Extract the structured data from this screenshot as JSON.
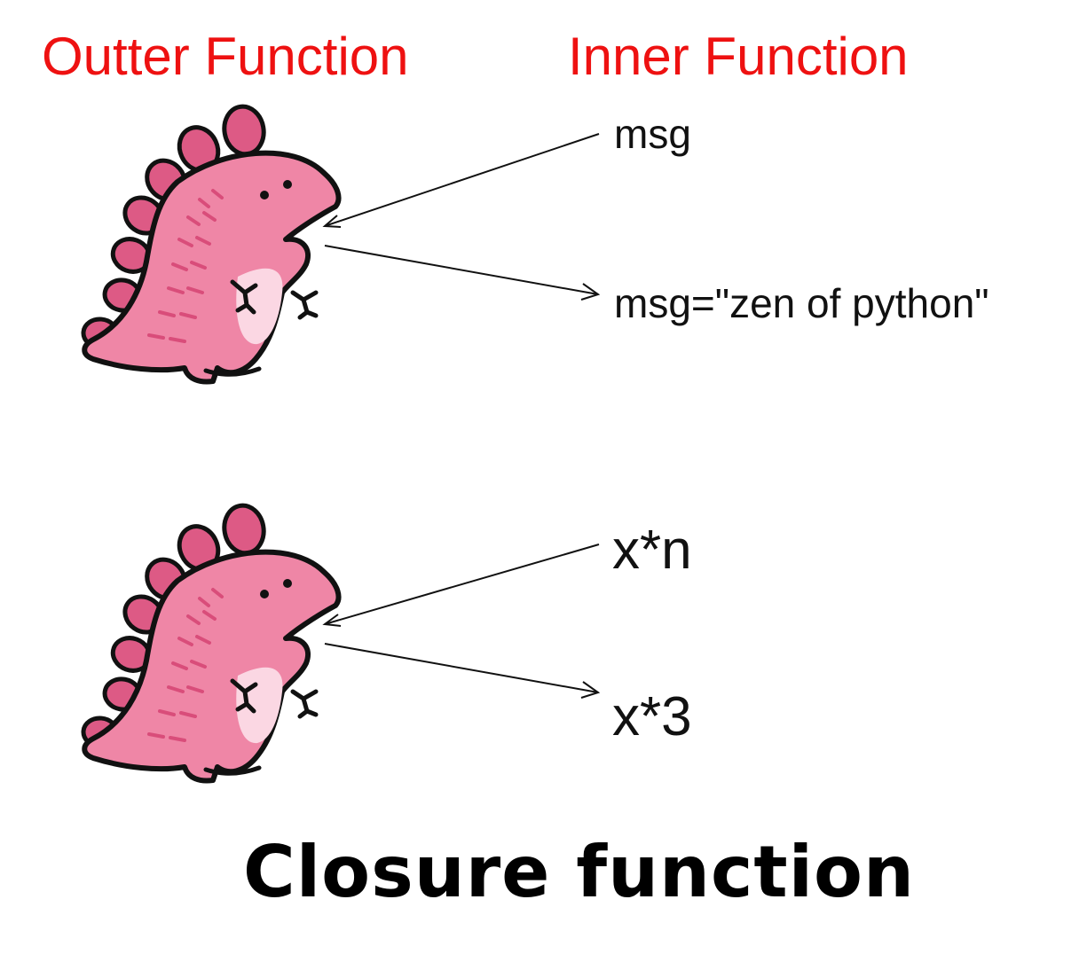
{
  "headings": {
    "outer": "Outter Function",
    "inner": "Inner Function"
  },
  "examples": [
    {
      "top_label": "msg",
      "bottom_label": "msg=\"zen of python\""
    },
    {
      "top_label": "x*n",
      "bottom_label": "x*3"
    }
  ],
  "footer": {
    "title": "Closure function"
  },
  "colors": {
    "heading": "#ee1111",
    "dino_body": "#ef86a6",
    "dino_spikes": "#dd5a85",
    "dino_belly": "#fbd7e3",
    "outline": "#111111"
  },
  "icons": {
    "mascot": "pink-dinosaur-icon",
    "arrow": "arrow-icon"
  }
}
